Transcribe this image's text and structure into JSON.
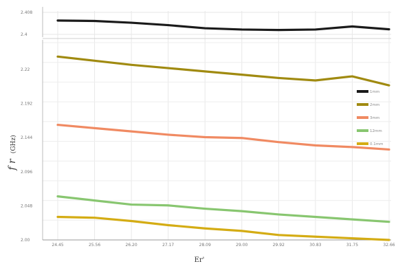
{
  "chart_data": {
    "type": "line",
    "xlabel": "Er'",
    "ylabel": "fr (GHz)",
    "ylabel_symbol": "f r",
    "ylabel_unit": "(GHz)",
    "x_tick_labels": [
      "24.45",
      "25.56",
      "26.20",
      "27.17",
      "28.09",
      "29.00",
      "29.92",
      "30.83",
      "31.75",
      "32.66"
    ],
    "top_panel": {
      "ylim": [
        2.398,
        2.408
      ],
      "y_tick_labels": [
        "2.4",
        "2.408"
      ]
    },
    "bottom_panel": {
      "ylim": [
        2.0,
        2.24
      ],
      "y_tick_labels": [
        "2.00",
        "2.048",
        "2.096",
        "2.144",
        "2.192",
        "2.22"
      ]
    },
    "grid": true,
    "legend_placement": "right",
    "series": [
      {
        "name": "1mm",
        "color": "#1a1a1a",
        "panel": "top",
        "values": [
          2.4043,
          2.4041,
          2.4033,
          2.4022,
          2.4008,
          2.4002,
          2.4,
          2.4002,
          2.4016,
          2.4003
        ]
      },
      {
        "name": "2mm",
        "color": "#a08a10",
        "panel": "bottom",
        "values": [
          2.223,
          2.218,
          2.213,
          2.209,
          2.205,
          2.201,
          2.197,
          2.194,
          2.199,
          2.188
        ]
      },
      {
        "name": "3mm",
        "color": "#f08a62",
        "panel": "bottom",
        "values": [
          2.14,
          2.136,
          2.132,
          2.128,
          2.125,
          2.124,
          2.119,
          2.115,
          2.113,
          2.11
        ]
      },
      {
        "name": "12mm",
        "color": "#88c670",
        "panel": "bottom",
        "values": [
          2.053,
          2.048,
          2.043,
          2.042,
          2.038,
          2.035,
          2.031,
          2.028,
          2.025,
          2.022
        ]
      },
      {
        "name": "0.1mm",
        "color": "#d4ac14",
        "panel": "bottom",
        "values": [
          2.028,
          2.027,
          2.023,
          2.018,
          2.014,
          2.011,
          2.006,
          2.004,
          2.002,
          2.0
        ]
      }
    ]
  }
}
